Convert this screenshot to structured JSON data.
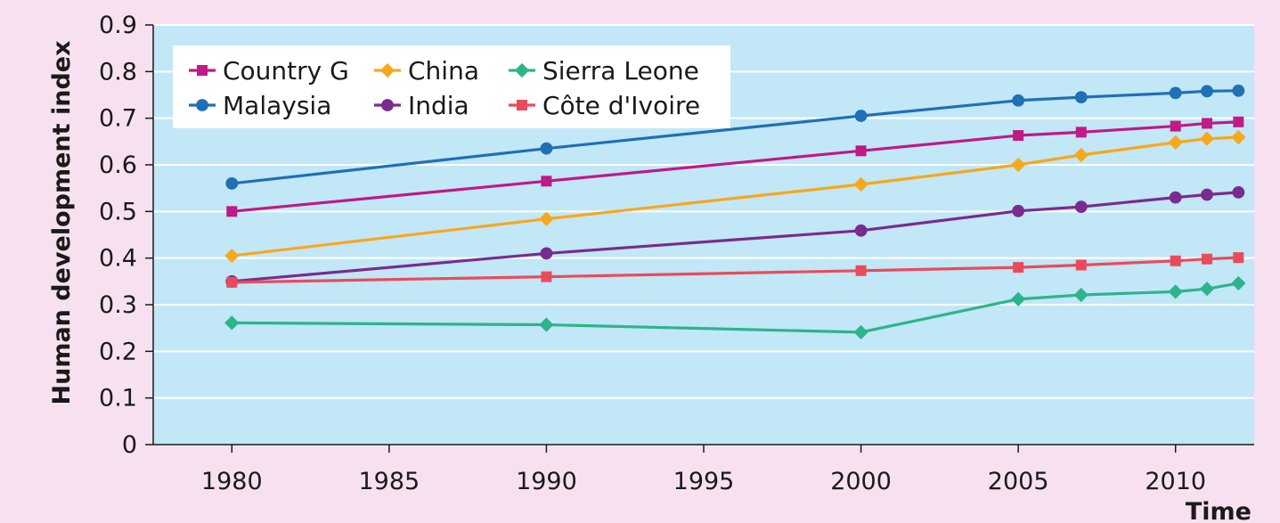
{
  "chart_data": {
    "type": "line",
    "title": "",
    "xlabel": "Time",
    "ylabel": "Human development index",
    "xlim": [
      1977.5,
      2012.5
    ],
    "ylim": [
      0,
      0.9
    ],
    "x_ticks": [
      1980,
      1985,
      1990,
      1995,
      2000,
      2005,
      2010
    ],
    "y_ticks": [
      0,
      0.1,
      0.2,
      0.3,
      0.4,
      0.5,
      0.6,
      0.7,
      0.8,
      0.9
    ],
    "y_tick_labels": [
      "0",
      "0.1",
      "0.2",
      "0.3",
      "0.4",
      "0.5",
      "0.6",
      "0.7",
      "0.8",
      "0.9"
    ],
    "x_tick_labels": [
      "1980",
      "1985",
      "1990",
      "1995",
      "2000",
      "2005",
      "2010"
    ],
    "grid": "horizontal",
    "legend": "top-left",
    "background": "#c2e7f7",
    "series": [
      {
        "name": "Country G",
        "color": "#bf1a85",
        "marker": "square",
        "x": [
          1980,
          1990,
          2000,
          2005,
          2007,
          2010,
          2011,
          2012
        ],
        "y": [
          0.5,
          0.565,
          0.63,
          0.663,
          0.67,
          0.683,
          0.689,
          0.692
        ]
      },
      {
        "name": "China",
        "color": "#f6a81d",
        "marker": "diamond",
        "x": [
          1980,
          1990,
          2000,
          2005,
          2007,
          2010,
          2011,
          2012
        ],
        "y": [
          0.405,
          0.484,
          0.558,
          0.6,
          0.621,
          0.648,
          0.656,
          0.659
        ]
      },
      {
        "name": "Sierra Leone",
        "color": "#2eb48b",
        "marker": "diamond",
        "x": [
          1980,
          1990,
          2000,
          2005,
          2007,
          2010,
          2011,
          2012
        ],
        "y": [
          0.261,
          0.257,
          0.241,
          0.312,
          0.321,
          0.328,
          0.334,
          0.346
        ]
      },
      {
        "name": "Malaysia",
        "color": "#1f70b5",
        "marker": "circle",
        "x": [
          1980,
          1990,
          2000,
          2005,
          2007,
          2010,
          2011,
          2012
        ],
        "y": [
          0.56,
          0.635,
          0.705,
          0.738,
          0.745,
          0.754,
          0.758,
          0.759
        ]
      },
      {
        "name": "India",
        "color": "#7a2b8e",
        "marker": "circle",
        "x": [
          1980,
          1990,
          2000,
          2005,
          2007,
          2010,
          2011,
          2012
        ],
        "y": [
          0.35,
          0.41,
          0.459,
          0.501,
          0.51,
          0.53,
          0.536,
          0.541
        ]
      },
      {
        "name": "Côte d'Ivoire",
        "color": "#ea4b5b",
        "marker": "square",
        "x": [
          1980,
          1990,
          2000,
          2005,
          2007,
          2010,
          2011,
          2012
        ],
        "y": [
          0.348,
          0.36,
          0.373,
          0.38,
          0.385,
          0.394,
          0.398,
          0.401
        ]
      }
    ]
  }
}
